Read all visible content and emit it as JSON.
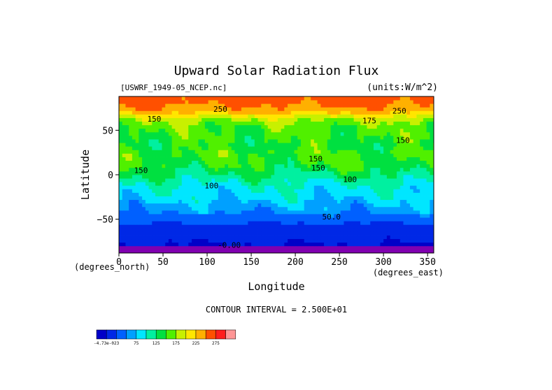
{
  "chart_data": {
    "type": "heatmap",
    "title": "Upward Solar Radiation Flux",
    "file_label": "[USWRF_1949-05_NCEP.nc]",
    "units_label": "(units:W/m^2)",
    "xlabel": "Longitude",
    "ylabel": "Latitude",
    "x_unit_label": "(degrees_east)",
    "y_unit_label": "(degrees_north)",
    "xlim": [
      0,
      357
    ],
    "ylim": [
      -88,
      88
    ],
    "x_ticks": [
      {
        "value": 0,
        "label": "0"
      },
      {
        "value": 50,
        "label": "50"
      },
      {
        "value": 100,
        "label": "100"
      },
      {
        "value": 150,
        "label": "150"
      },
      {
        "value": 200,
        "label": "200"
      },
      {
        "value": 250,
        "label": "250"
      },
      {
        "value": 300,
        "label": "300"
      },
      {
        "value": 350,
        "label": "350"
      }
    ],
    "y_ticks": [
      {
        "value": 50,
        "label": "50"
      },
      {
        "value": 0,
        "label": "0"
      },
      {
        "value": -50,
        "label": "−50"
      }
    ],
    "contour_interval_text": "CONTOUR INTERVAL = 2.500E+01",
    "zonal_profile": [
      {
        "lat": 88,
        "value": 262
      },
      {
        "lat": 80,
        "value": 255
      },
      {
        "lat": 72,
        "value": 240
      },
      {
        "lat": 64,
        "value": 190
      },
      {
        "lat": 56,
        "value": 160
      },
      {
        "lat": 48,
        "value": 155
      },
      {
        "lat": 40,
        "value": 150
      },
      {
        "lat": 32,
        "value": 145
      },
      {
        "lat": 24,
        "value": 155
      },
      {
        "lat": 16,
        "value": 150
      },
      {
        "lat": 8,
        "value": 140
      },
      {
        "lat": 0,
        "value": 125
      },
      {
        "lat": -8,
        "value": 105
      },
      {
        "lat": -16,
        "value": 92
      },
      {
        "lat": -24,
        "value": 85
      },
      {
        "lat": -32,
        "value": 72
      },
      {
        "lat": -40,
        "value": 60
      },
      {
        "lat": -48,
        "value": 40
      },
      {
        "lat": -56,
        "value": 22
      },
      {
        "lat": -64,
        "value": 10
      },
      {
        "lat": -72,
        "value": 5
      },
      {
        "lat": -80,
        "value": -2
      },
      {
        "lat": -88,
        "value": -5
      }
    ],
    "contour_labels": [
      {
        "text": "250",
        "lon": 115,
        "lat": 74
      },
      {
        "text": "250",
        "lon": 318,
        "lat": 72
      },
      {
        "text": "175",
        "lon": 284,
        "lat": 61
      },
      {
        "text": "150",
        "lon": 40,
        "lat": 63
      },
      {
        "text": "150",
        "lon": 322,
        "lat": 39
      },
      {
        "text": "150",
        "lon": 25,
        "lat": 5
      },
      {
        "text": "150",
        "lon": 223,
        "lat": 18
      },
      {
        "text": "150",
        "lon": 226,
        "lat": 8
      },
      {
        "text": "100",
        "lon": 105,
        "lat": -12
      },
      {
        "text": "100",
        "lon": 262,
        "lat": -5
      },
      {
        "text": "50.0",
        "lon": 241,
        "lat": -47
      },
      {
        "text": "-0.00",
        "lon": 125,
        "lat": -79
      }
    ],
    "colorbar": {
      "levels": [
        {
          "color": "#0000c8",
          "label": ""
        },
        {
          "color": "#0028e6",
          "label": ""
        },
        {
          "color": "#0060ff",
          "label": ""
        },
        {
          "color": "#00a0ff",
          "label": ""
        },
        {
          "color": "#00e6ff",
          "label": ""
        },
        {
          "color": "#00f0a0",
          "label": ""
        },
        {
          "color": "#00e040",
          "label": ""
        },
        {
          "color": "#50f000",
          "label": ""
        },
        {
          "color": "#c8f000",
          "label": ""
        },
        {
          "color": "#ffe600",
          "label": ""
        },
        {
          "color": "#ffb000",
          "label": ""
        },
        {
          "color": "#ff5000",
          "label": ""
        },
        {
          "color": "#ff1e1e",
          "label": ""
        },
        {
          "color": "#ff9696",
          "label": ""
        }
      ],
      "tick_labels": [
        "-4.73e-023",
        "75",
        "125",
        "175",
        "225",
        "275"
      ],
      "tick_after_index": [
        0,
        3,
        5,
        7,
        9,
        11
      ]
    },
    "polar_color": "#8000b0"
  }
}
